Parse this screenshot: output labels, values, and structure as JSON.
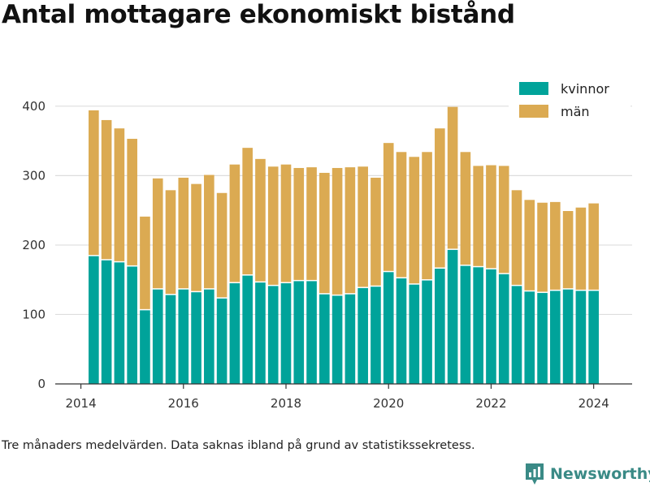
{
  "title": "Antal mottagare ekonomiskt bistånd",
  "footnote": "Tre månaders medelvärden. Data saknas ibland på grund av statistikssekretess.",
  "brand": {
    "name": "Newsworthy",
    "icon": "newsworthy-logo-icon",
    "color": "#3a8a86"
  },
  "colors": {
    "kvinnor": "#00a39a",
    "man": "#dbaa52",
    "grid": "#dddddd",
    "axis": "#333333"
  },
  "chart_data": {
    "type": "bar",
    "stacked": true,
    "x_ticks": [
      "2014",
      "2016",
      "2018",
      "2020",
      "2022",
      "2024"
    ],
    "y_ticks": [
      "0",
      "100",
      "200",
      "300",
      "400"
    ],
    "ylim": [
      0,
      415
    ],
    "xlim": [
      2013.5,
      2024.75
    ],
    "grid": true,
    "legend_position": "top-right",
    "x": [
      2014.25,
      2014.5,
      2014.75,
      2015.0,
      2015.25,
      2015.5,
      2015.75,
      2016.0,
      2016.25,
      2016.5,
      2016.75,
      2017.0,
      2017.25,
      2017.5,
      2017.75,
      2018.0,
      2018.25,
      2018.5,
      2018.75,
      2019.0,
      2019.25,
      2019.5,
      2019.75,
      2020.0,
      2020.25,
      2020.5,
      2020.75,
      2021.0,
      2021.25,
      2021.5,
      2021.75,
      2022.0,
      2022.25,
      2022.5,
      2022.75,
      2023.0,
      2023.25,
      2023.5,
      2023.75,
      2024.0
    ],
    "series": [
      {
        "name": "kvinnor",
        "values": [
          184,
          178,
          175,
          169,
          106,
          136,
          128,
          136,
          132,
          136,
          123,
          145,
          156,
          146,
          141,
          145,
          148,
          148,
          129,
          127,
          129,
          138,
          140,
          161,
          152,
          143,
          149,
          166,
          193,
          170,
          168,
          165,
          158,
          141,
          133,
          131,
          134,
          136,
          134,
          134
        ]
      },
      {
        "name": "män",
        "values": [
          210,
          202,
          193,
          184,
          135,
          160,
          151,
          161,
          156,
          165,
          152,
          171,
          184,
          178,
          172,
          171,
          163,
          164,
          175,
          184,
          183,
          175,
          157,
          186,
          182,
          184,
          185,
          202,
          206,
          164,
          146,
          150,
          156,
          138,
          132,
          130,
          128,
          113,
          120,
          126
        ]
      }
    ]
  }
}
